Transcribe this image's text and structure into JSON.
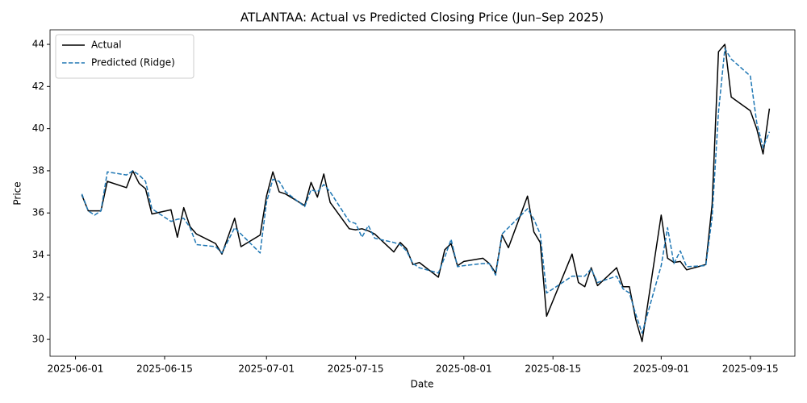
{
  "chart_data": {
    "type": "line",
    "title": "ATLANTAA: Actual vs Predicted Closing Price (Jun–Sep 2025)",
    "x_label": "Date",
    "y_label": "Price",
    "legend": "upper left",
    "x": [
      "2025-06-02",
      "2025-06-03",
      "2025-06-04",
      "2025-06-05",
      "2025-06-06",
      "2025-06-09",
      "2025-06-10",
      "2025-06-11",
      "2025-06-12",
      "2025-06-13",
      "2025-06-16",
      "2025-06-17",
      "2025-06-18",
      "2025-06-19",
      "2025-06-20",
      "2025-06-23",
      "2025-06-24",
      "2025-06-25",
      "2025-06-26",
      "2025-06-27",
      "2025-06-30",
      "2025-07-01",
      "2025-07-02",
      "2025-07-03",
      "2025-07-04",
      "2025-07-07",
      "2025-07-08",
      "2025-07-09",
      "2025-07-10",
      "2025-07-11",
      "2025-07-14",
      "2025-07-15",
      "2025-07-16",
      "2025-07-17",
      "2025-07-18",
      "2025-07-21",
      "2025-07-22",
      "2025-07-23",
      "2025-07-24",
      "2025-07-25",
      "2025-07-28",
      "2025-07-29",
      "2025-07-30",
      "2025-07-31",
      "2025-08-01",
      "2025-08-04",
      "2025-08-05",
      "2025-08-06",
      "2025-08-07",
      "2025-08-08",
      "2025-08-11",
      "2025-08-12",
      "2025-08-13",
      "2025-08-14",
      "2025-08-18",
      "2025-08-19",
      "2025-08-20",
      "2025-08-21",
      "2025-08-22",
      "2025-08-25",
      "2025-08-26",
      "2025-08-27",
      "2025-08-28",
      "2025-08-29",
      "2025-09-01",
      "2025-09-02",
      "2025-09-03",
      "2025-09-04",
      "2025-09-05",
      "2025-09-08",
      "2025-09-09",
      "2025-09-10",
      "2025-09-11",
      "2025-09-12",
      "2025-09-15",
      "2025-09-16",
      "2025-09-17",
      "2025-09-18"
    ],
    "series": [
      {
        "name": "Actual",
        "color": "#000000",
        "dash": false,
        "values": [
          36.85,
          36.1,
          36.1,
          36.1,
          37.5,
          37.2,
          38.0,
          37.4,
          37.15,
          35.95,
          36.15,
          34.85,
          36.25,
          35.35,
          35.0,
          34.55,
          34.05,
          34.9,
          35.75,
          34.4,
          34.95,
          36.8,
          37.95,
          37.0,
          36.9,
          36.35,
          37.45,
          36.75,
          37.85,
          36.5,
          35.25,
          35.2,
          35.25,
          35.15,
          35.0,
          34.15,
          34.6,
          34.3,
          33.55,
          33.65,
          32.95,
          34.25,
          34.55,
          33.5,
          33.7,
          33.85,
          33.6,
          33.15,
          34.95,
          34.35,
          36.8,
          35.1,
          34.6,
          31.1,
          34.05,
          32.7,
          32.5,
          33.4,
          32.55,
          33.4,
          32.5,
          32.5,
          30.95,
          29.9,
          35.9,
          33.85,
          33.65,
          33.7,
          33.3,
          33.55,
          36.4,
          43.65,
          44.0,
          41.5,
          40.85,
          40.0,
          38.8,
          40.95
        ]
      },
      {
        "name": "Predicted (Ridge)",
        "color": "#1f77b4",
        "dash": true,
        "values": [
          36.9,
          36.1,
          35.9,
          36.1,
          37.95,
          37.8,
          38.0,
          37.8,
          37.5,
          36.2,
          35.6,
          35.7,
          35.75,
          35.3,
          34.5,
          34.4,
          34.1,
          34.7,
          35.3,
          35.0,
          34.1,
          36.5,
          37.6,
          37.5,
          37.0,
          36.3,
          37.1,
          37.0,
          37.35,
          37.0,
          35.6,
          35.5,
          34.85,
          35.4,
          34.8,
          34.6,
          34.5,
          34.2,
          33.6,
          33.4,
          33.15,
          33.9,
          34.75,
          33.45,
          33.5,
          33.6,
          33.6,
          33.05,
          35.0,
          35.3,
          36.2,
          35.7,
          35.0,
          32.2,
          33.0,
          33.0,
          33.0,
          33.35,
          32.7,
          33.0,
          32.4,
          32.2,
          31.2,
          30.3,
          33.5,
          35.3,
          33.6,
          34.2,
          33.45,
          33.5,
          35.8,
          40.8,
          43.8,
          43.3,
          42.5,
          40.3,
          39.1,
          39.85
        ]
      }
    ],
    "xlim": [
      "2025-05-28",
      "2025-09-22"
    ],
    "xticks": [
      "2025-06-01",
      "2025-06-15",
      "2025-07-01",
      "2025-07-15",
      "2025-08-01",
      "2025-08-15",
      "2025-09-01",
      "2025-09-15"
    ],
    "ylim": [
      29.2,
      44.69
    ],
    "yticks": [
      30,
      32,
      34,
      36,
      38,
      40,
      42,
      44
    ]
  }
}
